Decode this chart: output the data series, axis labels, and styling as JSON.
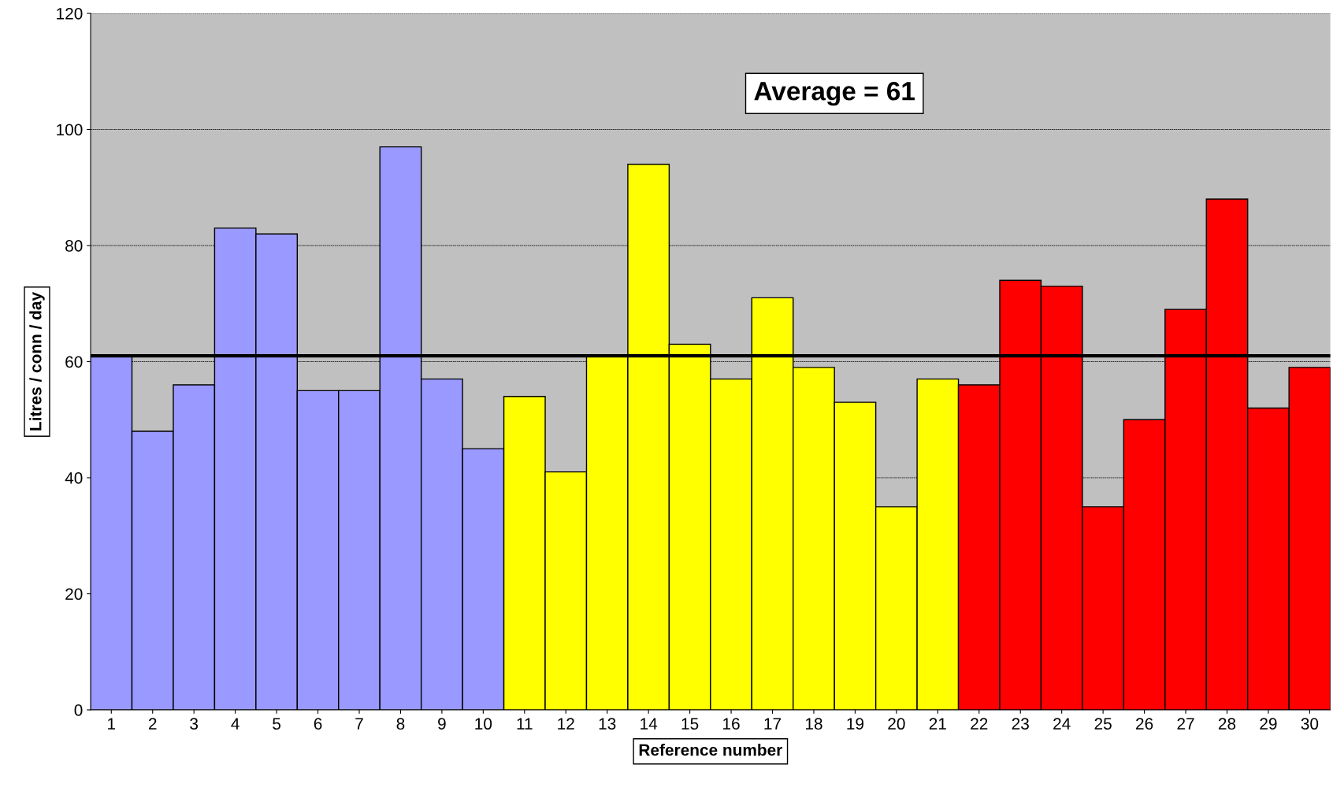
{
  "chart_data": {
    "type": "bar",
    "xlabel": "Reference number",
    "ylabel": "Litres / conn / day",
    "categories": [
      "1",
      "2",
      "3",
      "4",
      "5",
      "6",
      "7",
      "8",
      "9",
      "10",
      "11",
      "12",
      "13",
      "14",
      "15",
      "16",
      "17",
      "18",
      "19",
      "20",
      "21",
      "22",
      "23",
      "24",
      "25",
      "26",
      "27",
      "28",
      "29",
      "30"
    ],
    "values": [
      61,
      48,
      56,
      83,
      82,
      55,
      55,
      97,
      57,
      45,
      54,
      41,
      61,
      94,
      63,
      57,
      71,
      59,
      53,
      35,
      57,
      56,
      74,
      73,
      35,
      50,
      69,
      88,
      52,
      59
    ],
    "colors": [
      "#9999ff",
      "#9999ff",
      "#9999ff",
      "#9999ff",
      "#9999ff",
      "#9999ff",
      "#9999ff",
      "#9999ff",
      "#9999ff",
      "#9999ff",
      "#ffff00",
      "#ffff00",
      "#ffff00",
      "#ffff00",
      "#ffff00",
      "#ffff00",
      "#ffff00",
      "#ffff00",
      "#ffff00",
      "#ffff00",
      "#ffff00",
      "#ff0000",
      "#ff0000",
      "#ff0000",
      "#ff0000",
      "#ff0000",
      "#ff0000",
      "#ff0000",
      "#ff0000",
      "#ff0000"
    ],
    "ylim": [
      0,
      120
    ],
    "yticks": [
      0,
      20,
      40,
      60,
      80,
      100,
      120
    ],
    "grid": "y",
    "legend": false,
    "ref_lines": [
      {
        "axis": "y",
        "value": 61,
        "label": "Average = 61",
        "color": "#000000",
        "line_style": "solid"
      }
    ]
  }
}
